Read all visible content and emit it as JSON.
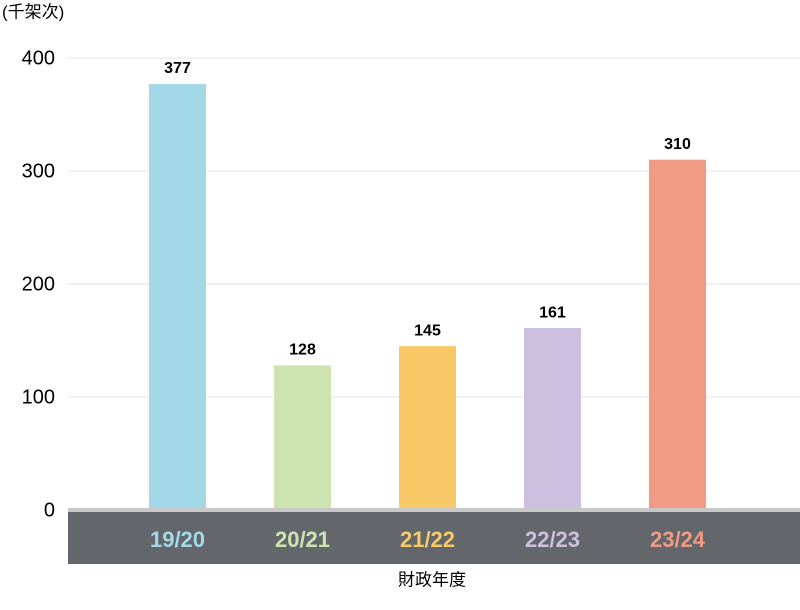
{
  "chart_data": {
    "type": "bar",
    "y_unit_label": "(千架次)",
    "x_label": "財政年度",
    "categories": [
      "19/20",
      "20/21",
      "21/22",
      "22/23",
      "23/24"
    ],
    "values": [
      377,
      128,
      145,
      161,
      310
    ],
    "colors": [
      "#a3d8e6",
      "#cde4b0",
      "#f8c966",
      "#cdbfe0",
      "#f19b84"
    ],
    "ylim": [
      0,
      400
    ],
    "yticks": [
      0,
      100,
      200,
      300,
      400
    ],
    "grid": true
  }
}
